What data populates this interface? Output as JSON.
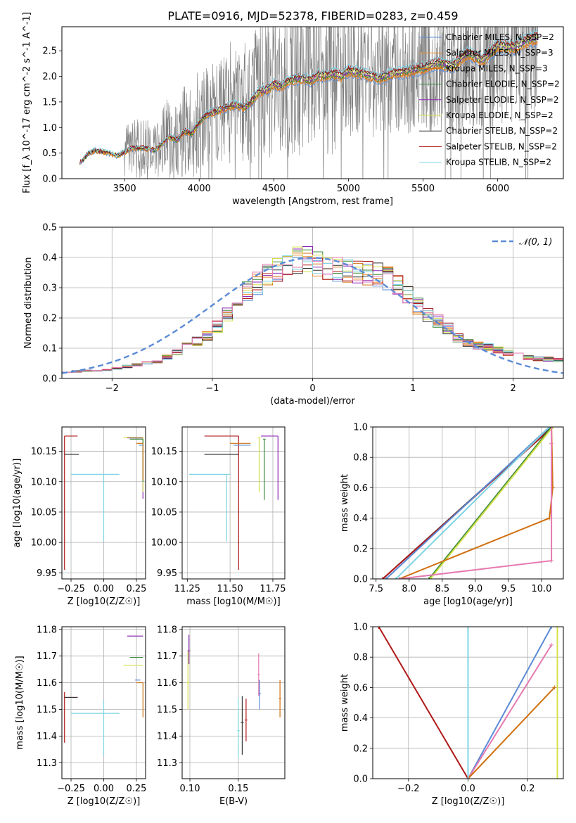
{
  "figure_title": "PLATE=0916, MJD=52378, FIBERID=0283, z=0.459",
  "colors": {
    "spectrum": "#808080",
    "c_miles": "#5b8bd6",
    "s_miles": "#f08a2c",
    "k_miles": "#d07010",
    "c_elodie": "#3a8a3a",
    "s_elodie": "#8c28b4",
    "k_elodie": "#d4e04a",
    "c_stelib": "#333333",
    "s_stelib": "#b01818",
    "k_stelib": "#7fd4e4",
    "gauss": "#5b8bd6",
    "pink": "#e57ab0"
  },
  "chart_data": [
    {
      "id": "spectrum",
      "type": "line",
      "xlabel": "wavelength [Angstrom, rest frame]",
      "ylabel": "Flux [f_λ 10^-17 erg cm^-2 s^-1 A^-1]",
      "xlim": [
        3080,
        6440
      ],
      "ylim": [
        0,
        2.97
      ],
      "xticks": [
        "3500",
        "4000",
        "4500",
        "5000",
        "5500",
        "6000"
      ],
      "yticks": [
        "0.0",
        "0.5",
        "1.0",
        "1.5",
        "2.0",
        "2.5"
      ],
      "grid": false,
      "legend_position": "top-right",
      "legend": [
        {
          "name": "Chabrier MILES, N_SSP=2",
          "color": "#5b8bd6"
        },
        {
          "name": "Salpeter MILES, N_SSP=3",
          "color": "#f08a2c"
        },
        {
          "name": "Kroupa MILES, N_SSP=3",
          "color": "#d07010"
        },
        {
          "name": "Chabrier ELODIE, N_SSP=2",
          "color": "#3a8a3a"
        },
        {
          "name": "Salpeter ELODIE, N_SSP=2",
          "color": "#8c28b4"
        },
        {
          "name": "Kroupa ELODIE, N_SSP=2",
          "color": "#d4e04a"
        },
        {
          "name": "Chabrier STELIB, N_SSP=2",
          "color": "#333333"
        },
        {
          "name": "Salpeter STELIB, N_SSP=2",
          "color": "#b01818"
        },
        {
          "name": "Kroupa STELIB, N_SSP=2",
          "color": "#7fd4e4"
        }
      ],
      "data_range": [
        3200,
        6270
      ],
      "model_flux": {
        "x": [
          3200,
          3260,
          3300,
          3400,
          3450,
          3500,
          3550,
          3600,
          3650,
          3700,
          3750,
          3800,
          3850,
          3900,
          3950,
          4000,
          4050,
          4100,
          4150,
          4200,
          4250,
          4300,
          4350,
          4400,
          4450,
          4500,
          4550,
          4600,
          4650,
          4700,
          4750,
          4800,
          4850,
          4900,
          4950,
          5000,
          5100,
          5200,
          5300,
          5400,
          5500,
          5600,
          5700,
          5800,
          5900,
          6000,
          6100,
          6200,
          6270
        ],
        "y": [
          0.3,
          0.5,
          0.55,
          0.5,
          0.45,
          0.52,
          0.6,
          0.6,
          0.58,
          0.55,
          0.68,
          0.82,
          0.75,
          0.92,
          0.88,
          1.1,
          1.25,
          1.3,
          1.35,
          1.4,
          1.45,
          1.38,
          1.5,
          1.7,
          1.72,
          1.85,
          1.8,
          1.9,
          1.95,
          1.95,
          1.92,
          2.02,
          2.0,
          2.05,
          2.0,
          2.1,
          2.05,
          1.95,
          2.05,
          2.1,
          2.15,
          2.25,
          2.2,
          2.45,
          2.3,
          2.6,
          2.55,
          2.7,
          2.75
        ]
      }
    },
    {
      "id": "residuals",
      "type": "step",
      "xlabel": "(data-model)/error",
      "ylabel": "Normed distribution",
      "xlim": [
        -2.5,
        2.5
      ],
      "ylim": [
        0,
        0.5
      ],
      "xticks": [
        "−2",
        "−1",
        "0",
        "1",
        "2"
      ],
      "yticks": [
        "0.0",
        "0.1",
        "0.2",
        "0.3",
        "0.4",
        "0.5"
      ],
      "grid": true,
      "legend_position": "top-right",
      "legend": [
        {
          "name": "𝒩(0, 1)",
          "color": "#5b8bd6",
          "style": "dashed"
        }
      ],
      "bin_width": 0.1,
      "histogram_envelope": {
        "x": [
          -2.5,
          -2.0,
          -1.5,
          -1.0,
          -0.7,
          -0.5,
          -0.3,
          -0.1,
          0.1,
          0.3,
          0.5,
          0.7,
          0.9,
          1.1,
          1.3,
          1.5,
          1.8,
          2.1,
          2.5
        ],
        "y": [
          0.02,
          0.03,
          0.06,
          0.15,
          0.27,
          0.33,
          0.37,
          0.4,
          0.37,
          0.36,
          0.35,
          0.34,
          0.3,
          0.22,
          0.18,
          0.12,
          0.1,
          0.07,
          0.06
        ]
      }
    },
    {
      "id": "age_vs_Z",
      "type": "errorbar",
      "xlabel": "Z [log10(Z/Z☉)]",
      "ylabel": "age  [log10(age/yr)]",
      "xlim": [
        -0.32,
        0.32
      ],
      "ylim": [
        9.94,
        10.19
      ],
      "xticks": [
        "−0.25",
        "0.00",
        "0.25"
      ],
      "yticks": [
        "9.95",
        "10.00",
        "10.05",
        "10.10",
        "10.15"
      ],
      "grid": true,
      "series": [
        {
          "name": "Salpeter STELIB",
          "color": "#b01818",
          "x": -0.3,
          "y": 10.175,
          "xerr": [
            0.0,
            0.1
          ],
          "yerr": [
            0.22,
            0.0
          ]
        },
        {
          "name": "Chabrier STELIB",
          "color": "#333333",
          "x": -0.3,
          "y": 10.145,
          "xerr": [
            0.0,
            0.11
          ],
          "yerr": [
            0.0,
            0.0
          ]
        },
        {
          "name": "Kroupa STELIB",
          "color": "#7fd4e4",
          "x": 0.0,
          "y": 10.112,
          "xerr": [
            0.25,
            0.12
          ],
          "yerr": [
            0.11,
            0.0
          ]
        },
        {
          "name": "Salpeter ELODIE",
          "color": "#8c28b4",
          "x": 0.3,
          "y": 10.172,
          "xerr": [
            0.12,
            0.0
          ],
          "yerr": [
            0.1,
            0.0
          ]
        },
        {
          "name": "Kroupa ELODIE",
          "color": "#d4e04a",
          "x": 0.3,
          "y": 10.173,
          "xerr": [
            0.15,
            0.0
          ],
          "yerr": [
            0.09,
            0.0
          ]
        },
        {
          "name": "Chabrier ELODIE",
          "color": "#3a8a3a",
          "x": 0.3,
          "y": 10.17,
          "xerr": [
            0.1,
            0.0
          ],
          "yerr": [
            0.07,
            0.0
          ]
        },
        {
          "name": "Kroupa MILES",
          "color": "#d07010",
          "x": 0.3,
          "y": 10.163,
          "xerr": [
            0.05,
            0.0
          ],
          "yerr": [
            0.06,
            0.0
          ]
        },
        {
          "name": "Chabrier MILES",
          "color": "#5b8bd6",
          "x": 0.3,
          "y": 10.16,
          "xerr": [
            0.03,
            0.0
          ],
          "yerr": [
            0.0,
            0.0
          ]
        }
      ]
    },
    {
      "id": "age_vs_mass",
      "type": "errorbar",
      "xlabel": "mass [log10(M/M☉)]",
      "ylabel": "",
      "xlim": [
        11.22,
        11.82
      ],
      "ylim": [
        9.94,
        10.19
      ],
      "xticks": [
        "11.25",
        "11.50",
        "11.75"
      ],
      "yticks": [
        "9.95",
        "10.00",
        "10.05",
        "10.10",
        "10.15"
      ],
      "grid": true,
      "series": [
        {
          "name": "Salpeter STELIB",
          "color": "#b01818",
          "x": 11.55,
          "y": 10.175,
          "xerr": [
            0.2,
            0.0
          ],
          "yerr": [
            0.22,
            0.0
          ]
        },
        {
          "name": "Chabrier STELIB",
          "color": "#333333",
          "x": 11.55,
          "y": 10.145,
          "xerr": [
            0.2,
            0.0
          ],
          "yerr": [
            0.0,
            0.0
          ]
        },
        {
          "name": "Kroupa STELIB",
          "color": "#7fd4e4",
          "x": 11.48,
          "y": 10.112,
          "xerr": [
            0.22,
            0.02
          ],
          "yerr": [
            0.11,
            0.0
          ]
        },
        {
          "name": "Kroupa MILES",
          "color": "#d07010",
          "x": 11.62,
          "y": 10.163,
          "xerr": [
            0.12,
            0.0
          ],
          "yerr": [
            0.0,
            0.0
          ]
        },
        {
          "name": "Chabrier MILES",
          "color": "#5b8bd6",
          "x": 11.62,
          "y": 10.16,
          "xerr": [
            0.1,
            0.0
          ],
          "yerr": [
            0.0,
            0.0
          ]
        },
        {
          "name": "Kroupa ELODIE",
          "color": "#d4e04a",
          "x": 11.67,
          "y": 10.173,
          "xerr": [
            0.0,
            0.0
          ],
          "yerr": [
            0.09,
            0.0
          ]
        },
        {
          "name": "Chabrier ELODIE",
          "color": "#3a8a3a",
          "x": 11.7,
          "y": 10.17,
          "xerr": [
            0.0,
            0.0
          ],
          "yerr": [
            0.1,
            0.0
          ]
        },
        {
          "name": "Salpeter ELODIE",
          "color": "#8c28b4",
          "x": 11.78,
          "y": 10.175,
          "xerr": [
            0.1,
            0.0
          ],
          "yerr": [
            0.105,
            0.0
          ]
        }
      ]
    },
    {
      "id": "weight_vs_age",
      "type": "line",
      "xlabel": "age  [log10(age/yr)]",
      "ylabel": "mass weight",
      "xlim": [
        7.45,
        10.33
      ],
      "ylim": [
        0,
        1
      ],
      "xticks": [
        "7.5",
        "8.0",
        "8.5",
        "9.0",
        "9.5",
        "10.0"
      ],
      "yticks": [
        "0.0",
        "0.2",
        "0.4",
        "0.6",
        "0.8",
        "1.0"
      ],
      "grid": true,
      "series": [
        {
          "name": "Chabrier STELIB",
          "color": "#333333",
          "x": [
            7.6,
            10.15
          ],
          "y": [
            0,
            1
          ]
        },
        {
          "name": "Salpeter STELIB",
          "color": "#b01818",
          "x": [
            7.6,
            10.17
          ],
          "y": [
            0,
            1
          ]
        },
        {
          "name": "Chabrier MILES",
          "color": "#5b8bd6",
          "x": [
            7.65,
            10.12
          ],
          "y": [
            0,
            1
          ]
        },
        {
          "name": "Kroupa STELIB",
          "color": "#7fd4e4",
          "x": [
            7.8,
            10.12
          ],
          "y": [
            0,
            1
          ]
        },
        {
          "name": "Chabrier ELODIE",
          "color": "#3a8a3a",
          "x": [
            8.3,
            10.15
          ],
          "y": [
            0,
            1
          ]
        },
        {
          "name": "Kroupa ELODIE",
          "color": "#d4e04a",
          "x": [
            8.32,
            10.17
          ],
          "y": [
            0,
            1
          ]
        },
        {
          "name": "Kroupa MILES",
          "color": "#d07010",
          "x": [
            7.85,
            10.12,
            10.17,
            10.15
          ],
          "y": [
            0,
            0.4,
            0.6,
            1
          ]
        },
        {
          "name": "Salpeter MILES",
          "color": "#e57ab0",
          "x": [
            7.85,
            10.15,
            10.15,
            10.15
          ],
          "y": [
            0,
            0.12,
            0.89,
            1
          ]
        }
      ]
    },
    {
      "id": "mass_vs_Z",
      "type": "errorbar",
      "xlabel": "Z [log10(Z/Z☉)]",
      "ylabel": "mass [log10(M/M☉)]",
      "xlim": [
        -0.32,
        0.32
      ],
      "ylim": [
        11.24,
        11.81
      ],
      "xticks": [
        "−0.25",
        "0.00",
        "0.25"
      ],
      "yticks": [
        "11.3",
        "11.4",
        "11.5",
        "11.6",
        "11.7",
        "11.8"
      ],
      "grid": true,
      "series": [
        {
          "name": "Salpeter STELIB",
          "color": "#b01818",
          "x": -0.3,
          "y": 11.545,
          "xerr": [
            0.0,
            0.1
          ],
          "yerr": [
            0.17,
            0.02
          ]
        },
        {
          "name": "Chabrier STELIB",
          "color": "#333333",
          "x": -0.3,
          "y": 11.545,
          "xerr": [
            0.0,
            0.1
          ],
          "yerr": [
            0.0,
            0.0
          ]
        },
        {
          "name": "Kroupa STELIB",
          "color": "#7fd4e4",
          "x": 0.0,
          "y": 11.485,
          "xerr": [
            0.25,
            0.12
          ],
          "yerr": [
            0.16,
            0.05
          ]
        },
        {
          "name": "Salpeter ELODIE",
          "color": "#8c28b4",
          "x": 0.3,
          "y": 11.775,
          "xerr": [
            0.12,
            0.0
          ],
          "yerr": [
            0.0,
            0.0
          ]
        },
        {
          "name": "Chabrier ELODIE",
          "color": "#3a8a3a",
          "x": 0.3,
          "y": 11.695,
          "xerr": [
            0.1,
            0.0
          ],
          "yerr": [
            0.0,
            0.0
          ]
        },
        {
          "name": "Kroupa ELODIE",
          "color": "#d4e04a",
          "x": 0.3,
          "y": 11.665,
          "xerr": [
            0.15,
            0.0
          ],
          "yerr": [
            0.0,
            0.0
          ]
        },
        {
          "name": "Chabrier MILES",
          "color": "#5b8bd6",
          "x": 0.28,
          "y": 11.61,
          "xerr": [
            0.04,
            0.0
          ],
          "yerr": [
            0.0,
            0.0
          ]
        },
        {
          "name": "Kroupa MILES",
          "color": "#d07010",
          "x": 0.3,
          "y": 11.6,
          "xerr": [
            0.05,
            0.0
          ],
          "yerr": [
            0.13,
            0.0
          ]
        }
      ]
    },
    {
      "id": "mass_vs_ebv",
      "type": "errorbar",
      "xlabel": "E(B-V)",
      "ylabel": "",
      "xlim": [
        0.092,
        0.198
      ],
      "ylim": [
        11.24,
        11.81
      ],
      "xticks": [
        "0.10",
        "0.15"
      ],
      "yticks": [
        "11.3",
        "11.4",
        "11.5",
        "11.6",
        "11.7",
        "11.8"
      ],
      "grid": true,
      "series": [
        {
          "name": "Chabrier STELIB",
          "color": "#333333",
          "x": 0.154,
          "y": 11.45,
          "yerr": [
            0.12,
            0.1
          ]
        },
        {
          "name": "Kroupa STELIB",
          "color": "#7fd4e4",
          "x": 0.15,
          "y": 11.42,
          "yerr": [
            0.1,
            0.12
          ]
        },
        {
          "name": "Salpeter STELIB",
          "color": "#b01818",
          "x": 0.158,
          "y": 11.46,
          "yerr": [
            0.08,
            0.08
          ]
        },
        {
          "name": "Kroupa ELODIE",
          "color": "#d4e04a",
          "x": 0.098,
          "y": 11.6,
          "yerr": [
            0.1,
            0.12
          ]
        },
        {
          "name": "Salpeter ELODIE",
          "color": "#8c28b4",
          "x": 0.099,
          "y": 11.72,
          "yerr": [
            0.05,
            0.06
          ]
        },
        {
          "name": "Chabrier MILES",
          "color": "#5b8bd6",
          "x": 0.172,
          "y": 11.56,
          "yerr": [
            0.06,
            0.05
          ]
        },
        {
          "name": "Salpeter MILES",
          "color": "#e57ab0",
          "x": 0.171,
          "y": 11.63,
          "yerr": [
            0.08,
            0.08
          ]
        },
        {
          "name": "Kroupa MILES",
          "color": "#d07010",
          "x": 0.193,
          "y": 11.54,
          "yerr": [
            0.07,
            0.07
          ]
        }
      ]
    },
    {
      "id": "weight_vs_Z",
      "type": "line",
      "xlabel": "Z [log10(Z/Z☉)]",
      "ylabel": "mass weight",
      "xlim": [
        -0.32,
        0.32
      ],
      "ylim": [
        0,
        1
      ],
      "xticks": [
        "−0.2",
        "0.0",
        "0.2"
      ],
      "yticks": [
        "0.0",
        "0.2",
        "0.4",
        "0.6",
        "0.8",
        "1.0"
      ],
      "grid": true,
      "series": [
        {
          "name": "Salpeter STELIB",
          "color": "#b01818",
          "x": [
            -0.3,
            0.0
          ],
          "y": [
            1,
            0
          ]
        },
        {
          "name": "Chabrier MILES",
          "color": "#5b8bd6",
          "x": [
            0.0,
            0.28
          ],
          "y": [
            0,
            1
          ]
        },
        {
          "name": "Salpeter MILES",
          "color": "#e57ab0",
          "x": [
            0.0,
            0.28
          ],
          "y": [
            0,
            0.88
          ]
        },
        {
          "name": "Kroupa MILES",
          "color": "#d07010",
          "x": [
            0.0,
            0.29
          ],
          "y": [
            0,
            0.6
          ]
        },
        {
          "name": "Kroupa STELIB",
          "color": "#7fd4e4",
          "x": [
            0.0,
            0.0
          ],
          "y": [
            0,
            1
          ]
        },
        {
          "name": "Kroupa ELODIE",
          "color": "#d4e04a",
          "x": [
            0.3,
            0.3
          ],
          "y": [
            0,
            1
          ]
        }
      ]
    }
  ]
}
